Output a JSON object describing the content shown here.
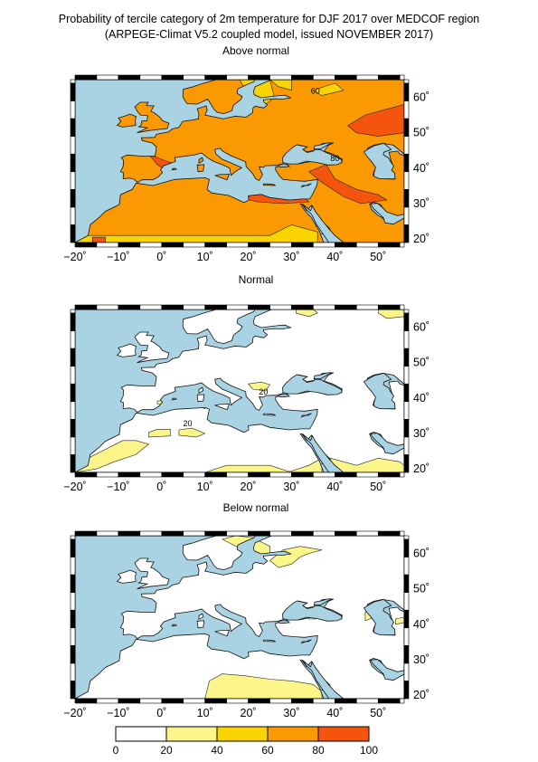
{
  "title": {
    "line1": "Probability of tercile category of 2m temperature for DJF 2017 over MEDCOF region",
    "line2": "(ARPEGE-Climat V5.2 coupled model, issued NOVEMBER 2017)"
  },
  "panels": [
    {
      "title": "Above normal",
      "contour_labels": [
        "60",
        "80"
      ]
    },
    {
      "title": "Normal",
      "contour_labels": [
        "20",
        "20"
      ]
    },
    {
      "title": "Below normal",
      "contour_labels": []
    }
  ],
  "axes": {
    "lon_labels": [
      "−20˚",
      "−10˚",
      "0˚",
      "10˚",
      "20˚",
      "30˚",
      "40˚",
      "50˚"
    ],
    "lat_labels": [
      "60˚",
      "50˚",
      "40˚",
      "30˚",
      "20˚"
    ]
  },
  "colorbar": {
    "labels": [
      "0",
      "20",
      "40",
      "60",
      "80",
      "100"
    ],
    "colors": [
      "#ffffff",
      "#fcf58a",
      "#fad400",
      "#fb9900",
      "#f5540e"
    ]
  },
  "colors": {
    "sea": "#a9d3e2",
    "c20": "#fcf58a",
    "c40": "#fad400",
    "c60": "#fb9900",
    "c80": "#f5540e"
  }
}
